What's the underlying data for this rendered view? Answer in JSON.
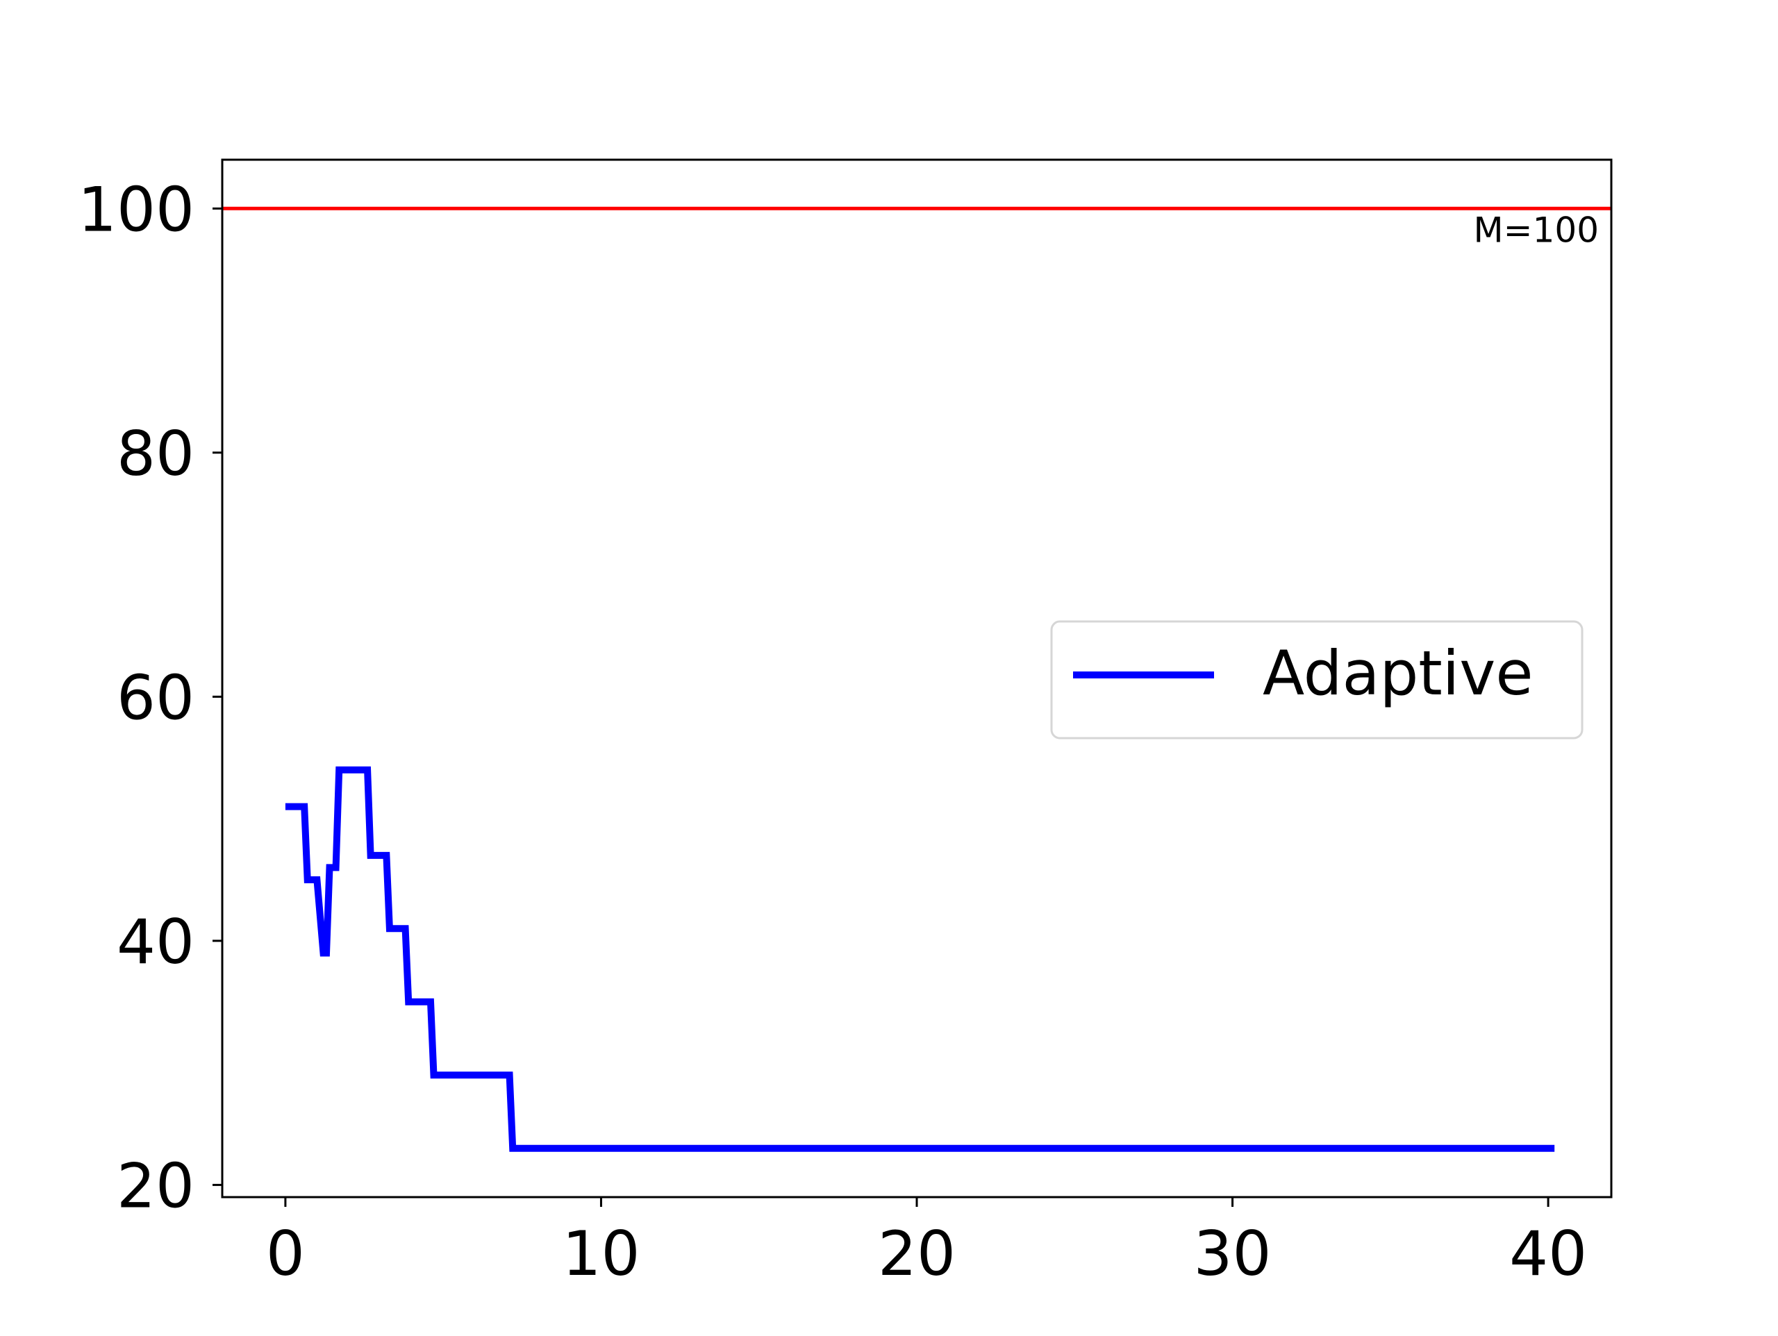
{
  "chart_data": {
    "type": "line",
    "title": "",
    "xlabel": "",
    "ylabel": "",
    "xlim": [
      -2,
      42
    ],
    "ylim": [
      19,
      104
    ],
    "xticks": [
      0,
      10,
      20,
      30,
      40
    ],
    "xtick_labels": [
      "0",
      "10",
      "20",
      "30",
      "40"
    ],
    "yticks": [
      20,
      40,
      60,
      80,
      100
    ],
    "ytick_labels": [
      "20",
      "40",
      "60",
      "80",
      "100"
    ],
    "grid": false,
    "legend": {
      "placement": "center-right"
    },
    "series": [
      {
        "name": "Adaptive",
        "color": "#0000ff",
        "x": [
          0,
          0.6,
          0.7,
          1.0,
          1.2,
          1.3,
          1.4,
          1.6,
          1.7,
          2.6,
          2.7,
          3.2,
          3.3,
          3.8,
          3.9,
          4.6,
          4.7,
          7.1,
          7.2,
          40.2
        ],
        "y": [
          51,
          51,
          45,
          45,
          39,
          39,
          46,
          46,
          54,
          54,
          47,
          47,
          41,
          41,
          35,
          35,
          29,
          29,
          23,
          23
        ]
      }
    ],
    "reference_lines": [
      {
        "orientation": "horizontal",
        "y": 100,
        "color": "#ff0000",
        "label": "M=100"
      }
    ]
  }
}
